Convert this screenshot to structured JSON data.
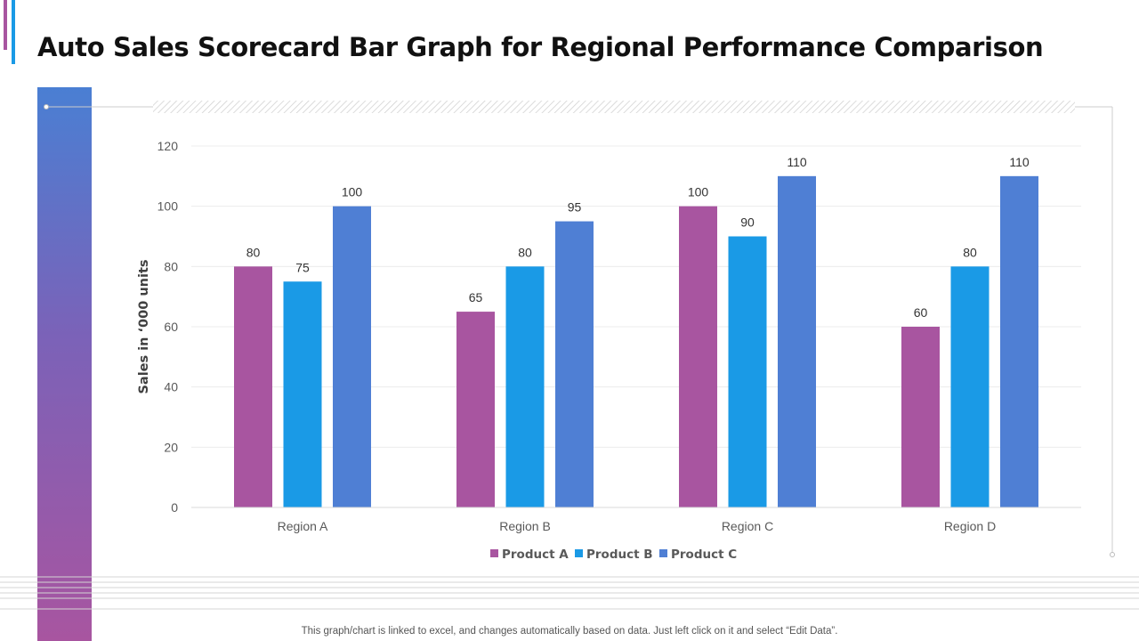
{
  "header": {
    "title": "Auto Sales Scorecard Bar Graph for Regional Performance Comparison"
  },
  "footer": {
    "note": "This graph/chart is linked to excel,  and changes automatically based on data. Just left click on it and select “Edit Data”."
  },
  "colors": {
    "accent_purple": "#a855a0",
    "accent_blue": "#1a9ae6",
    "accent_steel": "#4f7fd4"
  },
  "chart_data": {
    "type": "bar",
    "title": "",
    "xlabel": "",
    "ylabel": "Sales in ‘000 units",
    "ylim": [
      0,
      120
    ],
    "yticks": [
      0,
      20,
      40,
      60,
      80,
      100,
      120
    ],
    "grid": true,
    "legend_position": "bottom",
    "categories": [
      "Region A",
      "Region B",
      "Region C",
      "Region D"
    ],
    "series": [
      {
        "name": "Product A",
        "color": "#a855a0",
        "values": [
          80,
          65,
          100,
          60
        ]
      },
      {
        "name": "Product B",
        "color": "#1a9ae6",
        "values": [
          75,
          80,
          90,
          80
        ]
      },
      {
        "name": "Product C",
        "color": "#4f7fd4",
        "values": [
          100,
          95,
          110,
          110
        ]
      }
    ]
  }
}
